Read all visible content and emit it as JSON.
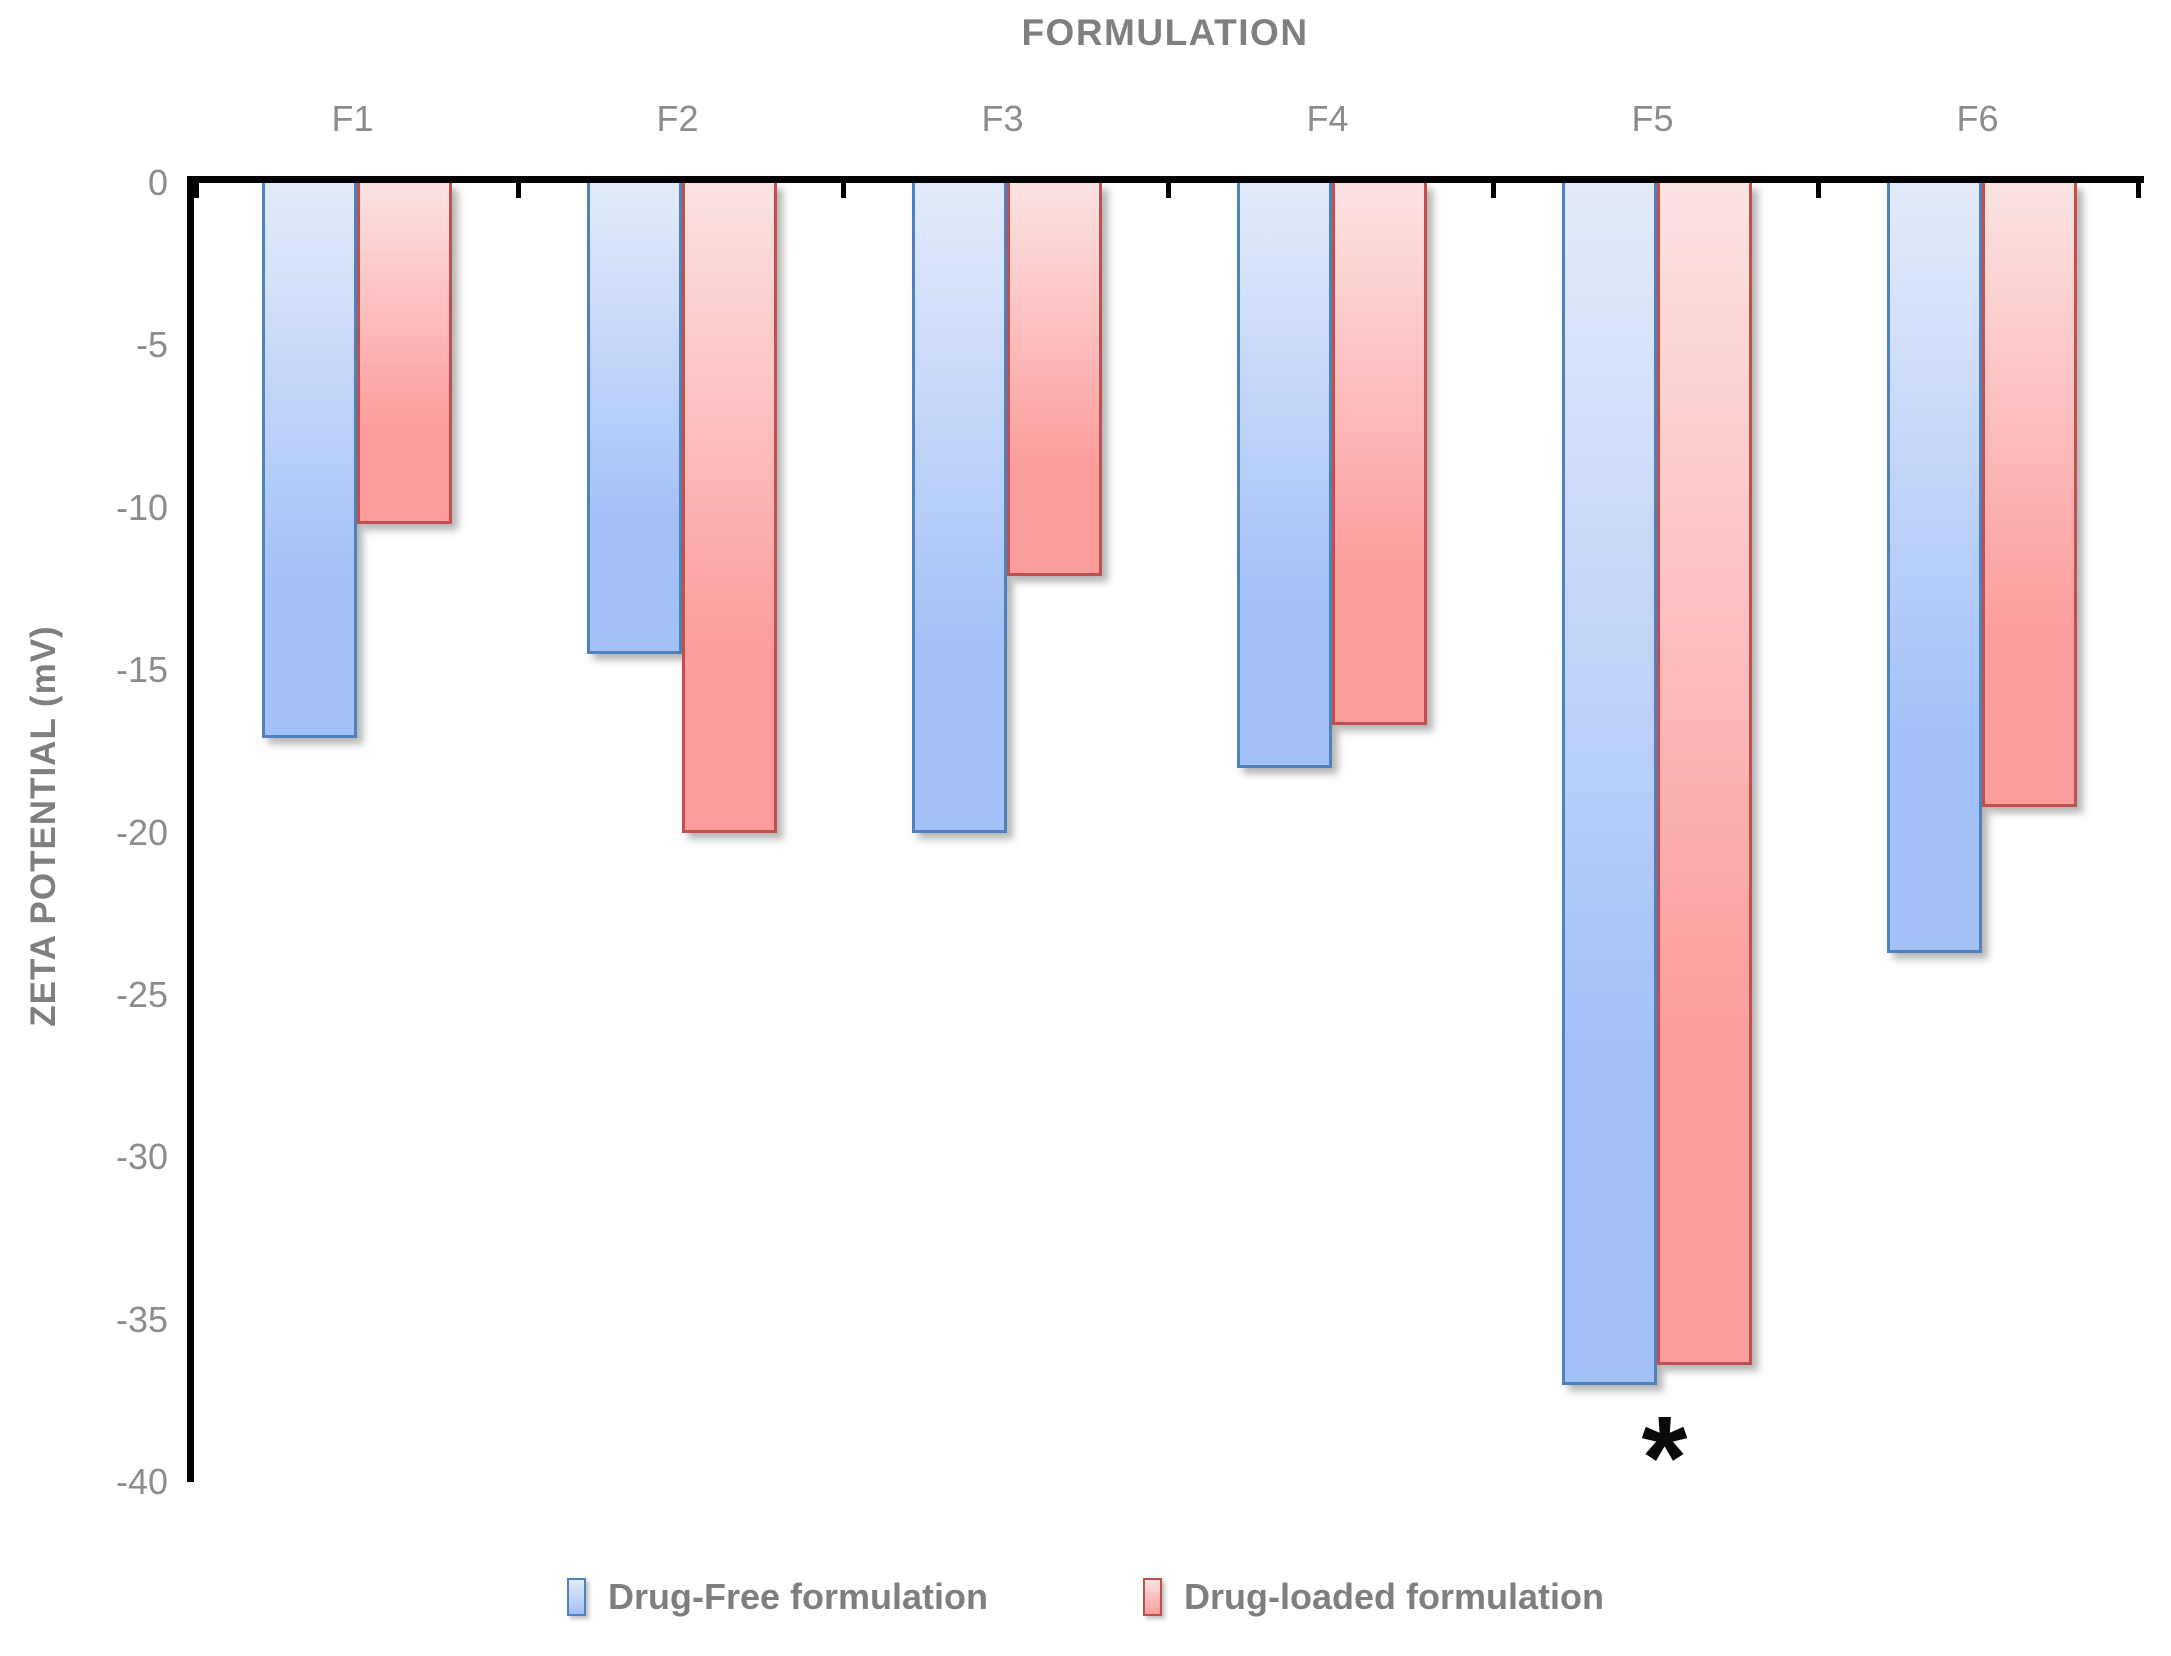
{
  "chart_data": {
    "type": "bar",
    "title": "FORMULATION",
    "ylabel": "ZETA POTENTIAL (mV)",
    "categories": [
      "F1",
      "F2",
      "F3",
      "F4",
      "F5",
      "F6"
    ],
    "series": [
      {
        "name": "Drug-Free formulation",
        "values": [
          -17.1,
          -14.5,
          -20.0,
          -18.0,
          -37.0,
          -23.7
        ],
        "fill_top": "#e3ebfa",
        "fill_bottom": "#a3c1f7",
        "border": "#4f81bd"
      },
      {
        "name": "Drug-loaded formulation",
        "values": [
          -10.5,
          -20.0,
          -12.1,
          -16.7,
          -36.4,
          -19.2
        ],
        "fill_top": "#fbe3e2",
        "fill_bottom": "#fc9d9d",
        "border": "#c0504d"
      }
    ],
    "y_ticks": [
      0,
      -5,
      -10,
      -15,
      -20,
      -25,
      -30,
      -35,
      -40
    ],
    "ylim": [
      0,
      -40
    ],
    "grid": "off",
    "legend_position": "bottom",
    "annotation": {
      "text": "*",
      "category": "F5"
    },
    "axis_color": "#000000",
    "tick_label_color": "#8c8c8c",
    "title_color": "#7f7f7f"
  }
}
